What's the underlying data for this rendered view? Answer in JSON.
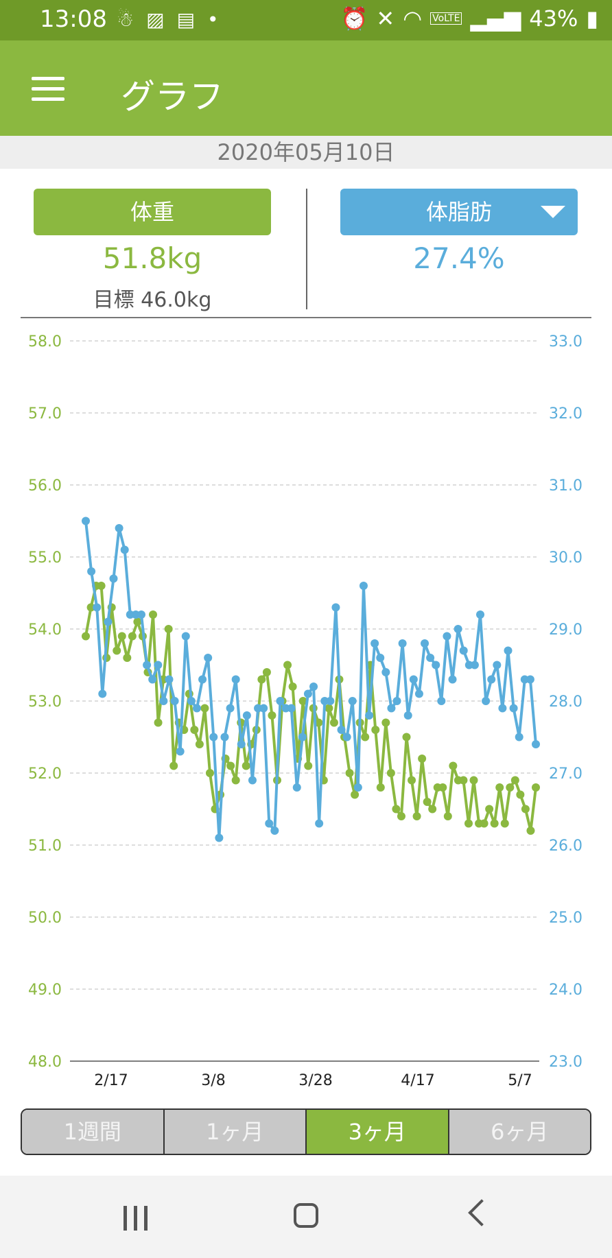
{
  "status_bar": {
    "time": "13:08",
    "battery": "43%",
    "volte": "VoLTE"
  },
  "app_bar": {
    "title": "グラフ"
  },
  "date": "2020年05月10日",
  "summary": {
    "weight_label": "体重",
    "weight_value": "51.8kg",
    "goal": "目標 46.0kg",
    "fat_label": "体脂肪",
    "fat_value": "27.4%"
  },
  "tabs": [
    {
      "label": "1週間",
      "active": false
    },
    {
      "label": "1ヶ月",
      "active": false
    },
    {
      "label": "3ヶ月",
      "active": true
    },
    {
      "label": "6ヶ月",
      "active": false
    }
  ],
  "colors": {
    "weight": "#8bb840",
    "fat": "#5aaddb",
    "status_bar": "#6f9a28"
  },
  "chart_data": {
    "type": "line",
    "x_tick_labels": [
      "2/17",
      "3/8",
      "3/28",
      "4/17",
      "5/7"
    ],
    "y_left": {
      "ticks": [
        "48.0",
        "49.0",
        "50.0",
        "51.0",
        "52.0",
        "53.0",
        "54.0",
        "55.0",
        "56.0",
        "57.0",
        "58.0"
      ],
      "range": [
        48,
        58
      ]
    },
    "y_right": {
      "ticks": [
        "23.0",
        "24.0",
        "25.0",
        "26.0",
        "27.0",
        "28.0",
        "29.0",
        "30.0",
        "31.0",
        "32.0",
        "33.0"
      ],
      "range": [
        23,
        33
      ]
    },
    "grid": true,
    "series": [
      {
        "axis": "left",
        "color": "#8bb840",
        "values": [
          53.9,
          54.3,
          54.6,
          54.6,
          53.6,
          54.3,
          53.7,
          53.9,
          53.6,
          53.9,
          54.1,
          53.9,
          53.4,
          54.2,
          52.7,
          53.3,
          54.0,
          52.1,
          52.7,
          52.6,
          53.1,
          52.6,
          52.4,
          52.9,
          52.0,
          51.5,
          51.7,
          52.2,
          52.1,
          51.9,
          52.7,
          52.1,
          52.4,
          52.6,
          53.3,
          53.4,
          52.8,
          51.9,
          53.0,
          53.5,
          53.2,
          52.2,
          53.0,
          52.1,
          52.9,
          52.7,
          51.9,
          52.9,
          52.7,
          53.3,
          52.5,
          52.0,
          51.7,
          52.7,
          52.5,
          53.5,
          52.6,
          51.8,
          52.7,
          52.0,
          51.5,
          51.4,
          52.5,
          51.9,
          51.4,
          52.2,
          51.6,
          51.5,
          51.8,
          51.8,
          51.4,
          52.1,
          51.9,
          51.9,
          51.3,
          51.9,
          51.3,
          51.3,
          51.5,
          51.3,
          51.8,
          51.3,
          51.8,
          51.9,
          51.7,
          51.5,
          51.2,
          51.8
        ]
      },
      {
        "axis": "right",
        "color": "#5aaddb",
        "values": [
          30.5,
          29.8,
          29.3,
          28.1,
          29.1,
          29.7,
          30.4,
          30.1,
          29.2,
          29.2,
          29.2,
          28.5,
          28.3,
          28.5,
          28.0,
          28.3,
          28.0,
          27.3,
          28.9,
          28.0,
          27.9,
          28.3,
          28.6,
          27.5,
          26.1,
          27.5,
          27.9,
          28.3,
          27.4,
          27.8,
          26.9,
          27.9,
          27.9,
          26.3,
          26.2,
          28.0,
          27.9,
          27.9,
          26.8,
          27.5,
          28.1,
          28.2,
          26.3,
          28.0,
          28.0,
          29.3,
          27.6,
          27.5,
          28.0,
          26.8,
          29.6,
          27.8,
          28.8,
          28.6,
          28.4,
          27.9,
          28.0,
          28.8,
          27.8,
          28.3,
          28.1,
          28.8,
          28.6,
          28.5,
          28.0,
          28.9,
          28.3,
          29.0,
          28.7,
          28.5,
          28.5,
          29.2,
          28.0,
          28.3,
          28.5,
          27.9,
          28.7,
          27.9,
          27.5,
          28.3,
          28.3,
          27.4
        ]
      }
    ]
  }
}
